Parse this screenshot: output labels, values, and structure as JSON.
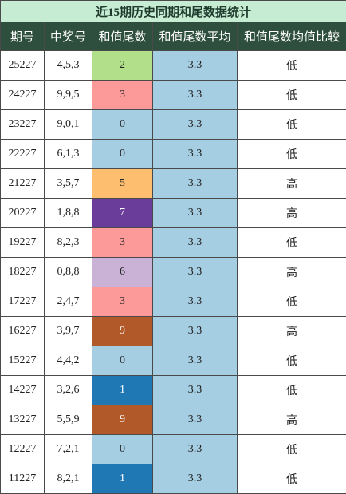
{
  "title": "近15期历史同期和尾数据统计",
  "header": [
    "期号",
    "中奖号",
    "和值尾数",
    "和值尾数平均",
    "和值尾数均值比较"
  ],
  "avg_color": "#a6cee3",
  "rows": [
    {
      "period": 25227,
      "numbers": "4,5,3",
      "tail": 2,
      "avg": 3.3,
      "compare": "低",
      "tail_color": "#b2df8a",
      "tail_text_color": "#222"
    },
    {
      "period": 24227,
      "numbers": "9,9,5",
      "tail": 3,
      "avg": 3.3,
      "compare": "低",
      "tail_color": "#fb9a99",
      "tail_text_color": "#222"
    },
    {
      "period": 23227,
      "numbers": "9,0,1",
      "tail": 0,
      "avg": 3.3,
      "compare": "低",
      "tail_color": "#a6cee3",
      "tail_text_color": "#222"
    },
    {
      "period": 22227,
      "numbers": "6,1,3",
      "tail": 0,
      "avg": 3.3,
      "compare": "低",
      "tail_color": "#a6cee3",
      "tail_text_color": "#222"
    },
    {
      "period": 21227,
      "numbers": "3,5,7",
      "tail": 5,
      "avg": 3.3,
      "compare": "高",
      "tail_color": "#fdbf6f",
      "tail_text_color": "#222"
    },
    {
      "period": 20227,
      "numbers": "1,8,8",
      "tail": 7,
      "avg": 3.3,
      "compare": "高",
      "tail_color": "#6a3d9a",
      "tail_text_color": "#fff"
    },
    {
      "period": 19227,
      "numbers": "8,2,3",
      "tail": 3,
      "avg": 3.3,
      "compare": "低",
      "tail_color": "#fb9a99",
      "tail_text_color": "#222"
    },
    {
      "period": 18227,
      "numbers": "0,8,8",
      "tail": 6,
      "avg": 3.3,
      "compare": "高",
      "tail_color": "#cab2d6",
      "tail_text_color": "#222"
    },
    {
      "period": 17227,
      "numbers": "2,4,7",
      "tail": 3,
      "avg": 3.3,
      "compare": "低",
      "tail_color": "#fb9a99",
      "tail_text_color": "#222"
    },
    {
      "period": 16227,
      "numbers": "3,9,7",
      "tail": 9,
      "avg": 3.3,
      "compare": "高",
      "tail_color": "#b15928",
      "tail_text_color": "#fff"
    },
    {
      "period": 15227,
      "numbers": "4,4,2",
      "tail": 0,
      "avg": 3.3,
      "compare": "低",
      "tail_color": "#a6cee3",
      "tail_text_color": "#222"
    },
    {
      "period": 14227,
      "numbers": "3,2,6",
      "tail": 1,
      "avg": 3.3,
      "compare": "低",
      "tail_color": "#1f78b4",
      "tail_text_color": "#fff"
    },
    {
      "period": 13227,
      "numbers": "5,5,9",
      "tail": 9,
      "avg": 3.3,
      "compare": "高",
      "tail_color": "#b15928",
      "tail_text_color": "#fff"
    },
    {
      "period": 12227,
      "numbers": "7,2,1",
      "tail": 0,
      "avg": 3.3,
      "compare": "低",
      "tail_color": "#a6cee3",
      "tail_text_color": "#222"
    },
    {
      "period": 11227,
      "numbers": "8,2,1",
      "tail": 1,
      "avg": 3.3,
      "compare": "低",
      "tail_color": "#1f78b4",
      "tail_text_color": "#fff"
    }
  ]
}
